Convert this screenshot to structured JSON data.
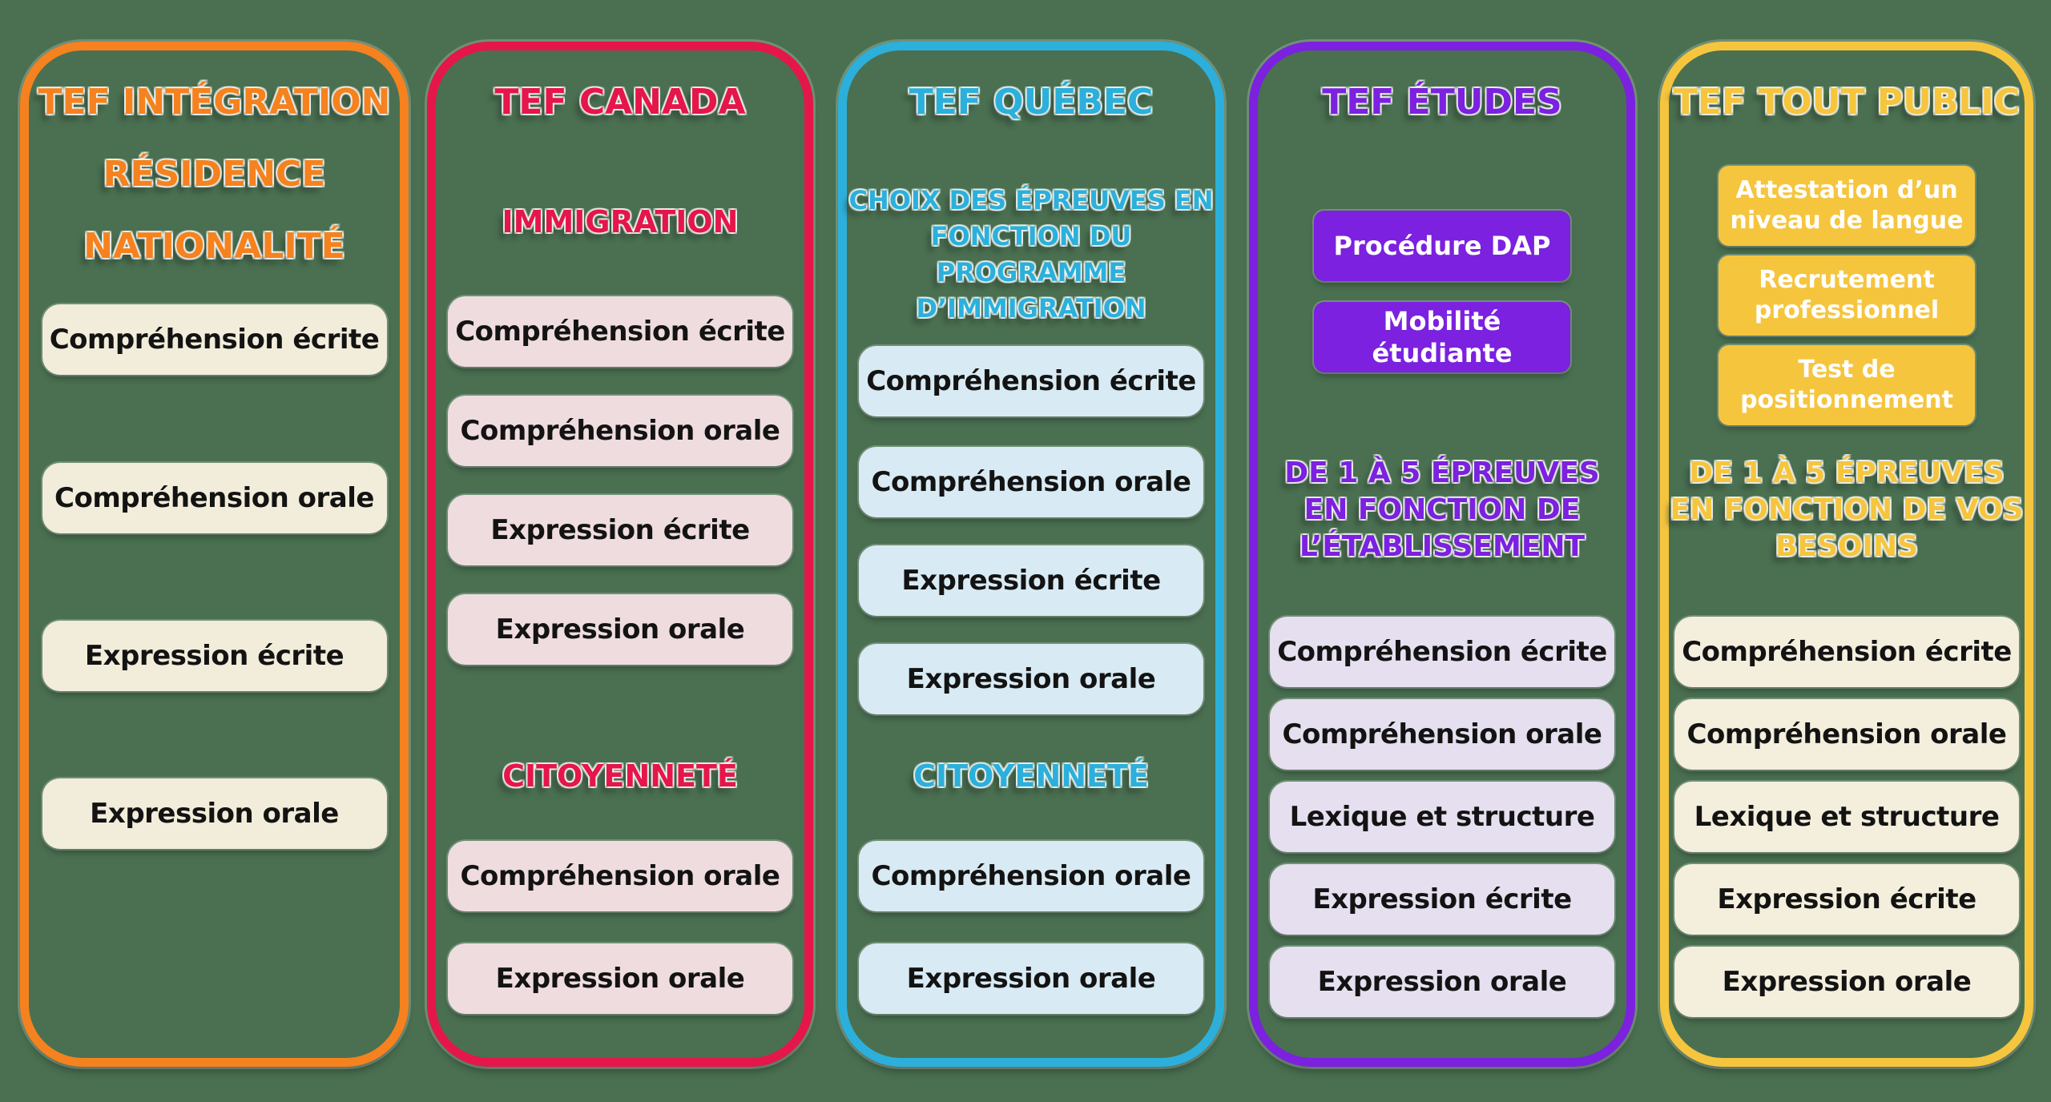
{
  "page": {
    "background": "#4A7051"
  },
  "columns": [
    {
      "title": "TEF INTÉGRATION\nRÉSIDENCE\nNATIONALITÉ",
      "accent": "#F5821F",
      "chip_bg": "#F2ECDA",
      "items": [
        "Compréhension écrite",
        "Compréhension orale",
        "Expression écrite",
        "Expression orale"
      ]
    },
    {
      "title": "TEF CANADA",
      "accent": "#E5164A",
      "chip_bg": "#EFDCDF",
      "label1": "IMMIGRATION",
      "items1": [
        "Compréhension écrite",
        "Compréhension orale",
        "Expression écrite",
        "Expression orale"
      ],
      "label2": "CITOYENNETÉ",
      "items2": [
        "Compréhension orale",
        "Expression orale"
      ]
    },
    {
      "title": "TEF QUÉBEC",
      "accent": "#2CB0DB",
      "chip_bg": "#D8EAF3",
      "label1": "CHOIX DES ÉPREUVES EN\nFONCTION DU PROGRAMME\nD’IMMIGRATION",
      "items1": [
        "Compréhension écrite",
        "Compréhension orale",
        "Expression écrite",
        "Expression orale"
      ],
      "label2": "CITOYENNETÉ",
      "items2": [
        "Compréhension orale",
        "Expression orale"
      ]
    },
    {
      "title": "TEF ÉTUDES",
      "accent": "#7B21DF",
      "chip_bg": "#E5DFEF",
      "tags": [
        "Procédure DAP",
        "Mobilité étudiante"
      ],
      "note": "DE 1 À 5 ÉPREUVES\nEN FONCTION DE\nL’ÉTABLISSEMENT",
      "items": [
        "Compréhension écrite",
        "Compréhension orale",
        "Lexique et structure",
        "Expression écrite",
        "Expression orale"
      ]
    },
    {
      "title": "TEF TOUT PUBLIC",
      "accent": "#F6C53E",
      "chip_bg": "#F4EEDD",
      "tags": [
        "Attestation d’un\nniveau de langue",
        "Recrutement\nprofessionnel",
        "Test de\npositionnement"
      ],
      "note": "DE 1 À 5 ÉPREUVES\nEN FONCTION DE VOS\nBESOINS",
      "items": [
        "Compréhension écrite",
        "Compréhension orale",
        "Lexique et structure",
        "Expression écrite",
        "Expression orale"
      ]
    }
  ]
}
